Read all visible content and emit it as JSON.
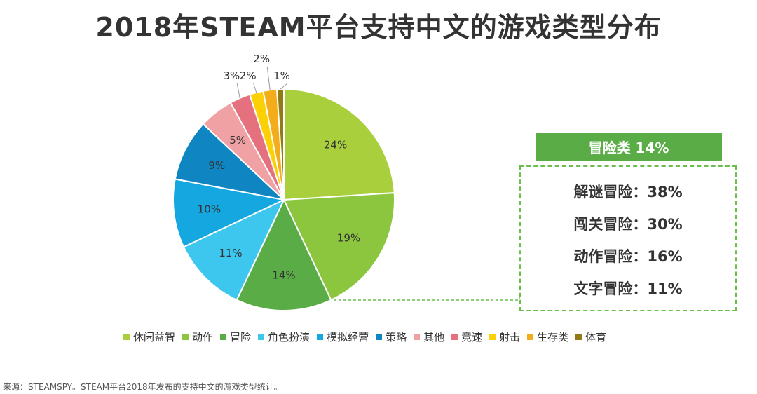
{
  "chart_data": {
    "type": "pie",
    "title": "2018年STEAM平台支持中文的游戏类型分布",
    "slices": [
      {
        "name": "休闲益智",
        "value": 24,
        "label": "24%",
        "color": "#a9cf3c"
      },
      {
        "name": "动作",
        "value": 19,
        "label": "19%",
        "color": "#8cc63f"
      },
      {
        "name": "冒险",
        "value": 14,
        "label": "14%",
        "color": "#5aad46"
      },
      {
        "name": "角色扮演",
        "value": 11,
        "label": "11%",
        "color": "#3ec7ee"
      },
      {
        "name": "模拟经营",
        "value": 10,
        "label": "10%",
        "color": "#14a7e0"
      },
      {
        "name": "策略",
        "value": 9,
        "label": "9%",
        "color": "#0f86c2"
      },
      {
        "name": "其他",
        "value": 5,
        "label": "5%",
        "color": "#f0a1a3"
      },
      {
        "name": "竞速",
        "value": 3,
        "label": "3%",
        "color": "#e5717f"
      },
      {
        "name": "射击",
        "value": 2,
        "label": "2%",
        "color": "#fbd005"
      },
      {
        "name": "生存类",
        "value": 2,
        "label": "2%",
        "color": "#f4ad1a"
      },
      {
        "name": "体育",
        "value": 1,
        "label": "1%",
        "color": "#927b14"
      }
    ],
    "legend_position": "bottom"
  },
  "callout": {
    "header": "冒险类 14%",
    "rows": [
      "解谜冒险：38%",
      "闯关冒险：30%",
      "动作冒险：16%",
      "文字冒险：11%"
    ],
    "highlight_slice": "冒险",
    "accent_color": "#5aad46"
  },
  "source": "来源：STEAMSPY。STEAM平台2018年发布的支持中文的游戏类型统计。"
}
